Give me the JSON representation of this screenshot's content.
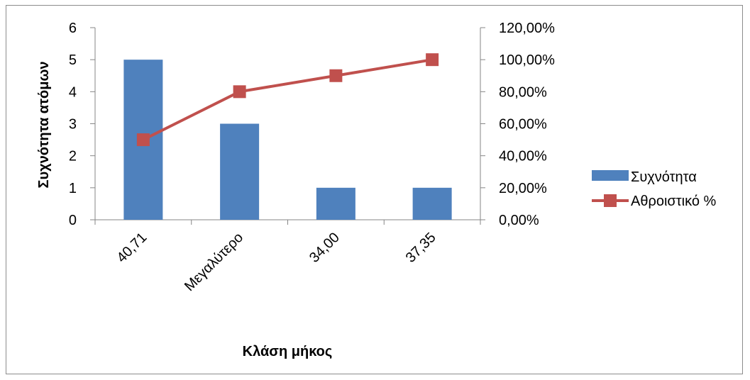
{
  "chart_data": {
    "type": "bar",
    "categories": [
      "40,71",
      "Μεγαλύτερο",
      "34,00",
      "37,35"
    ],
    "series": [
      {
        "name": "Συχνότητα",
        "type": "bar",
        "axis": "left",
        "values": [
          5,
          3,
          1,
          1
        ],
        "color": "#4f81bd"
      },
      {
        "name": "Αθροιστικό %",
        "type": "line",
        "axis": "right",
        "values": [
          50,
          80,
          90,
          100
        ],
        "color": "#c0504d"
      }
    ],
    "xlabel": "Κλάση μήκος",
    "ylabel": "Συχνότητα ατόμων",
    "ylim": [
      0,
      6
    ],
    "y_ticks": [
      "0",
      "1",
      "2",
      "3",
      "4",
      "5",
      "6"
    ],
    "y2lim": [
      0,
      120
    ],
    "y2_ticks": [
      "0,00%",
      "20,00%",
      "40,00%",
      "60,00%",
      "80,00%",
      "100,00%",
      "120,00%"
    ],
    "grid": false,
    "legend_position": "right"
  }
}
